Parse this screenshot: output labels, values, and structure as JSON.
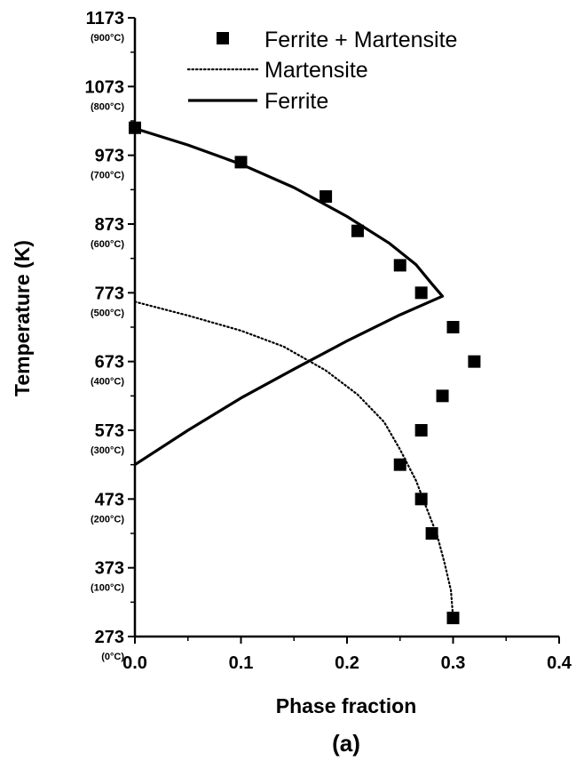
{
  "chart_data": {
    "type": "scatter",
    "xlabel": "Phase fraction",
    "ylabel": "Temperature (K)",
    "panel_label": "(a)",
    "xlim": [
      0.0,
      0.4
    ],
    "ylim": [
      273,
      1173
    ],
    "x_ticks": [
      "0.0",
      "0.1",
      "0.2",
      "0.3",
      "0.4"
    ],
    "y_ticks": [
      {
        "value": 273,
        "label": "273",
        "sublabel": "(0°C)"
      },
      {
        "value": 373,
        "label": "373",
        "sublabel": "(100°C)"
      },
      {
        "value": 473,
        "label": "473",
        "sublabel": "(200°C)"
      },
      {
        "value": 573,
        "label": "573",
        "sublabel": "(300°C)"
      },
      {
        "value": 673,
        "label": "673",
        "sublabel": "(400°C)"
      },
      {
        "value": 773,
        "label": "773",
        "sublabel": "(500°C)"
      },
      {
        "value": 873,
        "label": "873",
        "sublabel": "(600°C)"
      },
      {
        "value": 973,
        "label": "973",
        "sublabel": "(700°C)"
      },
      {
        "value": 1073,
        "label": "1073",
        "sublabel": "(800°C)"
      },
      {
        "value": 1173,
        "label": "1173",
        "sublabel": "(900°C)"
      }
    ],
    "legend_position": "top-right",
    "series": [
      {
        "name": "Ferrite + Martensite",
        "style": "squares",
        "color": "#000000",
        "points": [
          [
            0.0,
            1013
          ],
          [
            0.1,
            963
          ],
          [
            0.18,
            913
          ],
          [
            0.21,
            863
          ],
          [
            0.25,
            813
          ],
          [
            0.27,
            773
          ],
          [
            0.3,
            723
          ],
          [
            0.32,
            673
          ],
          [
            0.29,
            623
          ],
          [
            0.27,
            573
          ],
          [
            0.25,
            523
          ],
          [
            0.27,
            473
          ],
          [
            0.28,
            423
          ],
          [
            0.3,
            300
          ]
        ]
      },
      {
        "name": "Martensite",
        "style": "dotted",
        "color": "#000000",
        "points": [
          [
            0.0,
            760
          ],
          [
            0.05,
            740
          ],
          [
            0.1,
            718
          ],
          [
            0.14,
            695
          ],
          [
            0.18,
            660
          ],
          [
            0.21,
            625
          ],
          [
            0.235,
            585
          ],
          [
            0.25,
            545
          ],
          [
            0.265,
            500
          ],
          [
            0.275,
            460
          ],
          [
            0.285,
            420
          ],
          [
            0.292,
            380
          ],
          [
            0.298,
            340
          ],
          [
            0.3,
            300
          ]
        ]
      },
      {
        "name": "Ferrite",
        "style": "solid",
        "color": "#000000",
        "points": [
          [
            0.0,
            1012
          ],
          [
            0.05,
            988
          ],
          [
            0.1,
            960
          ],
          [
            0.15,
            926
          ],
          [
            0.2,
            884
          ],
          [
            0.24,
            845
          ],
          [
            0.265,
            814
          ],
          [
            0.28,
            786
          ],
          [
            0.29,
            768
          ],
          [
            0.25,
            741
          ],
          [
            0.2,
            703
          ],
          [
            0.15,
            662
          ],
          [
            0.1,
            620
          ],
          [
            0.05,
            573
          ],
          [
            0.0,
            523
          ]
        ]
      }
    ]
  }
}
